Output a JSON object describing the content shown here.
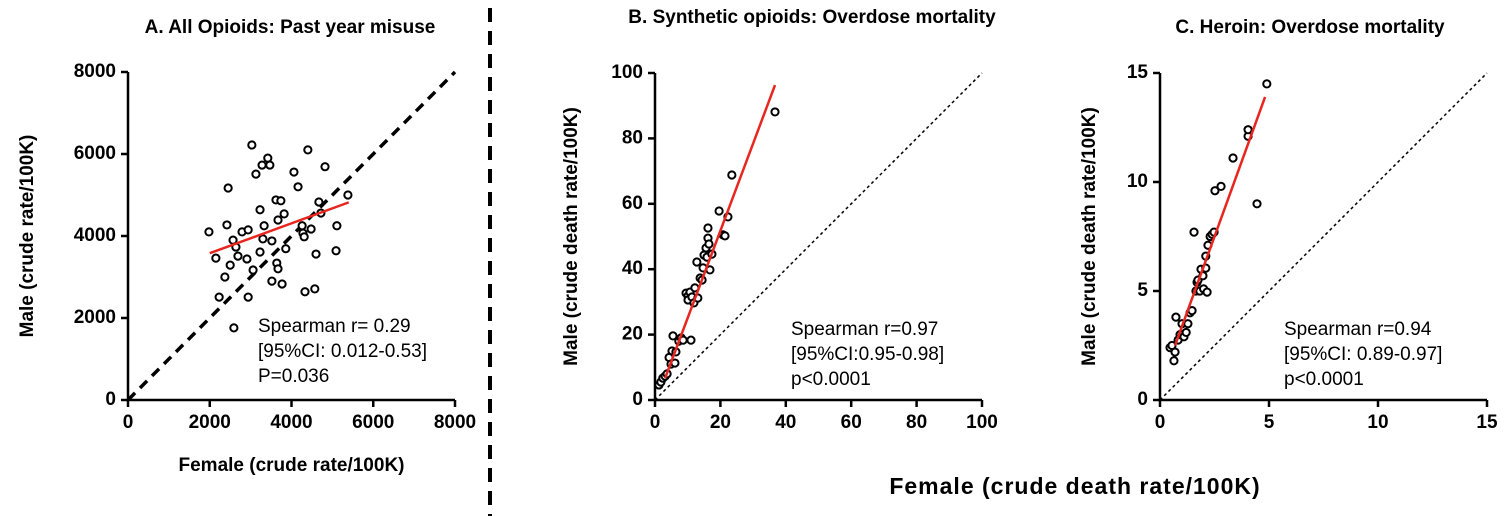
{
  "chart_data": [
    {
      "type": "scatter",
      "title": "A. All Opioids: Past year misuse",
      "xlabel": "Female (crude rate/100K)",
      "ylabel": "Male (crude rate/100K)",
      "xlim": [
        0,
        8000
      ],
      "ylim": [
        0,
        8000
      ],
      "xticks": [
        0,
        2000,
        4000,
        6000,
        8000
      ],
      "yticks": [
        0,
        2000,
        4000,
        6000,
        8000
      ],
      "diagonal": "dashed",
      "marker_color": "#000000",
      "x": [
        1980,
        2150,
        2230,
        2370,
        2450,
        2420,
        2500,
        2570,
        2590,
        2640,
        2690,
        2790,
        2910,
        2940,
        2940,
        3030,
        3060,
        3130,
        3230,
        3230,
        3280,
        3300,
        3330,
        3420,
        3470,
        3520,
        3520,
        3620,
        3640,
        3670,
        3670,
        3740,
        3770,
        3820,
        3860,
        4060,
        4160,
        4260,
        4280,
        4310,
        4330,
        4400,
        4480,
        4570,
        4600,
        4670,
        4720,
        4820,
        5090,
        5110,
        5380
      ],
      "y": [
        4100,
        3460,
        2510,
        3000,
        5170,
        4270,
        3290,
        3900,
        1760,
        3730,
        3510,
        4100,
        3440,
        4150,
        2510,
        6220,
        3170,
        5510,
        3610,
        4640,
        5730,
        3930,
        4250,
        5900,
        5730,
        3880,
        2900,
        4880,
        3340,
        3200,
        4390,
        4860,
        2830,
        4540,
        3690,
        5560,
        5200,
        4250,
        4070,
        3980,
        2640,
        6100,
        4170,
        2710,
        3560,
        4830,
        4560,
        5690,
        3640,
        4250,
        5000
      ],
      "fit": {
        "color": "#e8251f",
        "x": [
          2000,
          5400
        ],
        "y": [
          3580,
          4820
        ]
      },
      "annotation": [
        "Spearman r= 0.29",
        "[95%CI: 0.012-0.53]",
        "P=0.036"
      ]
    },
    {
      "type": "scatter",
      "title": "B. Synthetic opioids: Overdose mortality",
      "ylabel": "Male (crude death rate/100K)",
      "xlim": [
        0,
        100
      ],
      "ylim": [
        0,
        100
      ],
      "xticks": [
        0,
        20,
        40,
        60,
        80,
        100
      ],
      "yticks": [
        0,
        20,
        40,
        60,
        80,
        100
      ],
      "diagonal": "dotted",
      "marker_color": "#000000",
      "x": [
        1.2,
        1.8,
        2.4,
        3.1,
        3.7,
        4.3,
        4.9,
        5.5,
        5.2,
        6.1,
        6.4,
        7.3,
        8,
        8.6,
        9.5,
        10.1,
        10.1,
        10.7,
        11,
        11.3,
        11.9,
        12.2,
        12.8,
        13.1,
        13.8,
        14.4,
        14.7,
        15,
        15.6,
        15.9,
        16.2,
        16.2,
        16.5,
        16.8,
        17.4,
        19.6,
        20.8,
        21.4,
        22.3,
        23.5,
        36.7
      ],
      "y": [
        4.6,
        5.5,
        6.7,
        7.3,
        8,
        13,
        11,
        19.6,
        15,
        11.3,
        14.7,
        18,
        19,
        18.3,
        32.7,
        31.8,
        30.6,
        33,
        18.3,
        31.5,
        29.7,
        34.3,
        42.2,
        31.2,
        37.3,
        36.7,
        40.4,
        44.3,
        46.5,
        43.7,
        52.6,
        49.5,
        47.7,
        39.8,
        44.6,
        57.8,
        50.5,
        50.2,
        56,
        68.8,
        88.1
      ],
      "fit": {
        "color": "#e8251f",
        "x": [
          3.1,
          36.7
        ],
        "y": [
          6.7,
          96.3
        ]
      },
      "annotation": [
        "Spearman r=0.97",
        "[95%CI:0.95-0.98]",
        "p<0.0001"
      ]
    },
    {
      "type": "scatter",
      "title": "C. Heroin: Overdose mortality",
      "ylabel": "Male (crude death rate/100K)",
      "xlim": [
        0,
        15
      ],
      "ylim": [
        0,
        15
      ],
      "xticks": [
        0,
        5,
        10,
        15
      ],
      "yticks": [
        0,
        5,
        10,
        15
      ],
      "diagonal": "dotted",
      "marker_color": "#000000",
      "x": [
        0.46,
        0.55,
        0.64,
        0.69,
        0.73,
        0.83,
        0.92,
        1.01,
        1.1,
        1.2,
        1.28,
        1.38,
        1.47,
        1.56,
        1.65,
        1.7,
        1.74,
        1.83,
        1.88,
        1.97,
        2.0,
        2.1,
        2.1,
        2.16,
        2.2,
        2.3,
        2.39,
        2.48,
        2.52,
        2.8,
        3.35,
        4.04,
        4.04,
        4.45,
        4.9
      ],
      "y": [
        2.4,
        2.5,
        1.8,
        2.2,
        3.8,
        2.75,
        3,
        3.5,
        2.9,
        3.1,
        3.5,
        4,
        4.1,
        7.7,
        5,
        5.4,
        5.5,
        5,
        6,
        5.7,
        5.1,
        6.6,
        6.05,
        4.95,
        7.1,
        7.5,
        7.6,
        7.7,
        9.6,
        9.8,
        11.1,
        12.1,
        12.4,
        9.0,
        14.5
      ],
      "fit": {
        "color": "#e8251f",
        "x": [
          0.69,
          4.82
        ],
        "y": [
          2.5,
          13.9
        ]
      },
      "annotation": [
        "Spearman r=0.94",
        "[95%CI: 0.89-0.97]",
        "p<0.0001"
      ]
    }
  ],
  "shared_xlabel": "Female (crude death rate/100K)"
}
